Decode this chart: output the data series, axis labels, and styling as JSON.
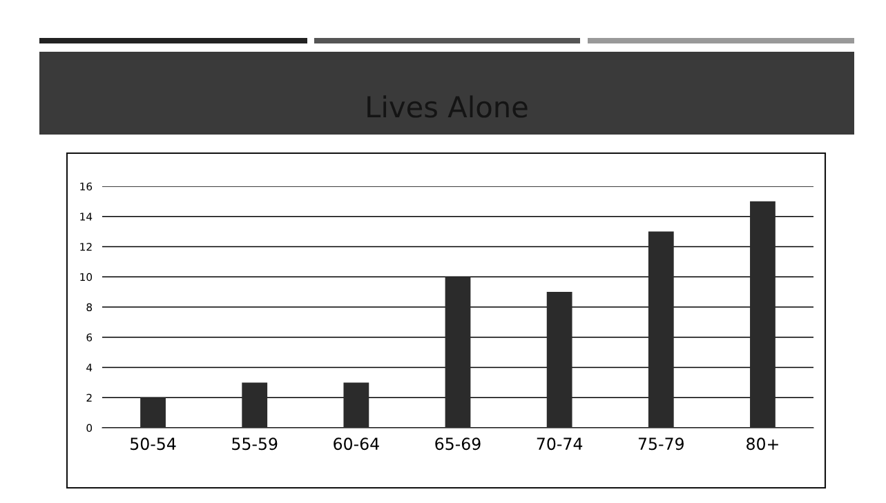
{
  "chart_data": {
    "type": "bar",
    "title": "Lives Alone",
    "categories": [
      "50-54",
      "55-59",
      "60-64",
      "65-69",
      "70-74",
      "75-79",
      "80+"
    ],
    "values": [
      2,
      3,
      3,
      10,
      9,
      13,
      15
    ],
    "color": "#2b2b2b",
    "ylim": [
      0,
      16
    ],
    "yticks": [
      0,
      2,
      4,
      6,
      8,
      10,
      12,
      14,
      16
    ],
    "grid": "y",
    "legend": false
  }
}
